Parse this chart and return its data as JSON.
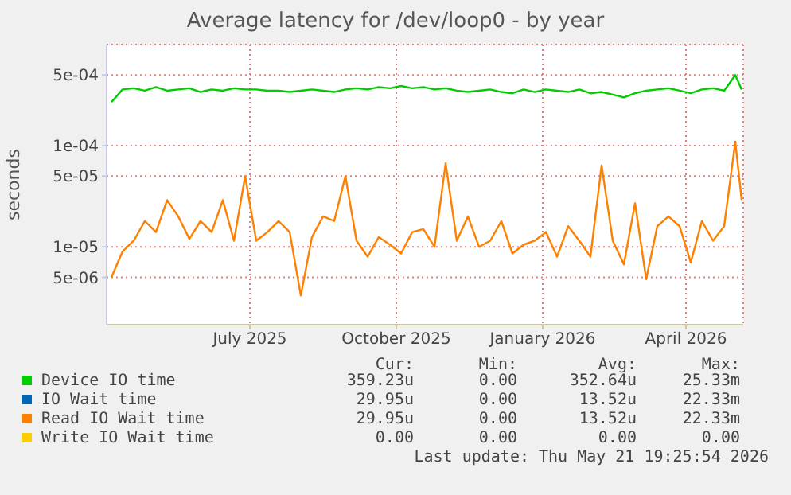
{
  "chart_data": {
    "type": "line",
    "title": "Average latency for /dev/loop0 - by year",
    "ylabel": "seconds",
    "x": [
      "2025-04-05",
      "2025-04-12",
      "2025-04-19",
      "2025-04-26",
      "2025-05-03",
      "2025-05-10",
      "2025-05-17",
      "2025-05-24",
      "2025-05-31",
      "2025-06-07",
      "2025-06-14",
      "2025-06-21",
      "2025-06-28",
      "2025-07-05",
      "2025-07-12",
      "2025-07-19",
      "2025-07-26",
      "2025-08-02",
      "2025-08-09",
      "2025-08-16",
      "2025-08-23",
      "2025-08-30",
      "2025-09-06",
      "2025-09-13",
      "2025-09-20",
      "2025-09-27",
      "2025-10-04",
      "2025-10-11",
      "2025-10-18",
      "2025-10-25",
      "2025-11-01",
      "2025-11-08",
      "2025-11-15",
      "2025-11-22",
      "2025-11-29",
      "2025-12-06",
      "2025-12-13",
      "2025-12-20",
      "2025-12-27",
      "2026-01-03",
      "2026-01-10",
      "2026-01-17",
      "2026-01-24",
      "2026-01-31",
      "2026-02-07",
      "2026-02-14",
      "2026-02-21",
      "2026-02-28",
      "2026-03-07",
      "2026-03-14",
      "2026-03-21",
      "2026-03-28",
      "2026-04-04",
      "2026-04-11",
      "2026-04-18",
      "2026-04-25",
      "2026-05-02",
      "2026-05-06"
    ],
    "series": [
      {
        "name": "Device IO time",
        "color": "#00cc00",
        "values": [
          0.00027,
          0.00036,
          0.00037,
          0.00035,
          0.00038,
          0.00035,
          0.00036,
          0.00037,
          0.00034,
          0.00036,
          0.00035,
          0.00037,
          0.00036,
          0.00036,
          0.00035,
          0.00035,
          0.00034,
          0.00035,
          0.00036,
          0.00035,
          0.00034,
          0.00036,
          0.00037,
          0.00036,
          0.00038,
          0.00037,
          0.00039,
          0.00037,
          0.00038,
          0.00036,
          0.00037,
          0.00035,
          0.00034,
          0.00035,
          0.00036,
          0.00034,
          0.00033,
          0.00036,
          0.00034,
          0.00036,
          0.00035,
          0.00034,
          0.00036,
          0.00033,
          0.00034,
          0.00032,
          0.0003,
          0.00033,
          0.00035,
          0.00036,
          0.00037,
          0.00035,
          0.00033,
          0.00036,
          0.00037,
          0.00035,
          0.0005,
          0.00036
        ]
      },
      {
        "name": "IO Wait time",
        "color": "#0066b3",
        "values": [
          null,
          null,
          null,
          null,
          null,
          null,
          null,
          null,
          null,
          null,
          null,
          null,
          null,
          null,
          null,
          null,
          null,
          null,
          null,
          null,
          null,
          null,
          null,
          null,
          null,
          null,
          null,
          null,
          null,
          null,
          null,
          null,
          null,
          null,
          null,
          null,
          null,
          null,
          null,
          null,
          null,
          null,
          null,
          null,
          null,
          null,
          null,
          null,
          null,
          null,
          null,
          null,
          null,
          null,
          null,
          null,
          null,
          null
        ]
      },
      {
        "name": "Read IO Wait time",
        "color": "#ff8000",
        "values": [
          5e-06,
          9e-06,
          1.15e-05,
          1.8e-05,
          1.4e-05,
          2.9e-05,
          2e-05,
          1.2e-05,
          1.8e-05,
          1.4e-05,
          2.9e-05,
          1.15e-05,
          5e-05,
          1.15e-05,
          1.4e-05,
          1.8e-05,
          1.4e-05,
          3.3e-06,
          1.25e-05,
          2e-05,
          1.8e-05,
          5e-05,
          1.15e-05,
          8e-06,
          1.25e-05,
          1.05e-05,
          8.6e-06,
          1.4e-05,
          1.5e-05,
          1e-05,
          6.7e-05,
          1.15e-05,
          2e-05,
          1e-05,
          1.15e-05,
          1.8e-05,
          8.6e-06,
          1.05e-05,
          1.15e-05,
          1.4e-05,
          8e-06,
          1.6e-05,
          1.15e-05,
          8e-06,
          6.4e-05,
          1.15e-05,
          6.7e-06,
          2.7e-05,
          4.8e-06,
          1.6e-05,
          2e-05,
          1.6e-05,
          7e-06,
          1.8e-05,
          1.15e-05,
          1.6e-05,
          0.00011,
          2.9e-05
        ]
      },
      {
        "name": "Write IO Wait time",
        "color": "#ffcc00",
        "values": [
          null,
          null,
          null,
          null,
          null,
          null,
          null,
          null,
          null,
          null,
          null,
          null,
          null,
          null,
          null,
          null,
          null,
          null,
          null,
          null,
          null,
          null,
          null,
          null,
          null,
          null,
          null,
          null,
          null,
          null,
          null,
          null,
          null,
          null,
          null,
          null,
          null,
          null,
          null,
          null,
          null,
          null,
          null,
          null,
          null,
          null,
          null,
          null,
          null,
          null,
          null,
          null,
          null,
          null,
          null,
          null,
          null,
          null
        ]
      }
    ],
    "log": "y",
    "ylim": [
      1.7e-06,
      0.001
    ],
    "yticks": [
      {
        "value": 5e-06,
        "label": "5e-06"
      },
      {
        "value": 1e-05,
        "label": "1e-05"
      },
      {
        "value": 5e-05,
        "label": "5e-05"
      },
      {
        "value": 0.0001,
        "label": "1e-04"
      },
      {
        "value": 0.0005,
        "label": "5e-04"
      }
    ],
    "xlim": [
      "2025-04-02",
      "2026-05-07"
    ],
    "xticks": [
      {
        "value": "2025-07-01",
        "label": "July 2025"
      },
      {
        "value": "2025-10-01",
        "label": "October 2025"
      },
      {
        "value": "2026-01-01",
        "label": "January 2026"
      },
      {
        "value": "2026-04-01",
        "label": "April 2026"
      }
    ],
    "grid": true,
    "legend": "bottom",
    "annotations": [
      "Cur:",
      "Min:",
      "Avg:",
      "Max:",
      "359.23u",
      "0.00",
      "352.64u",
      "25.33m",
      "29.95u",
      "0.00",
      "13.52u",
      "22.33m",
      "29.95u",
      "0.00",
      "13.52u",
      "22.33m",
      "0.00",
      "0.00",
      "0.00",
      "0.00",
      "Last update: Thu May 21 19:25:54 2026"
    ]
  }
}
